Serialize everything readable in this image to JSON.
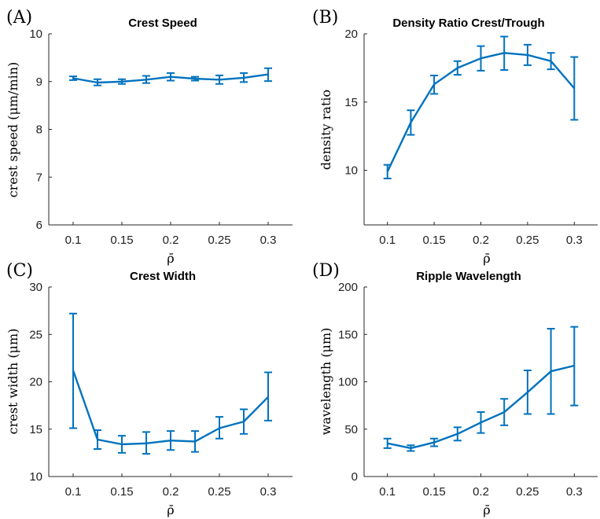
{
  "chart_data": [
    {
      "panel": "(A)",
      "type": "line",
      "title": "Crest Speed",
      "xlabel": "ρ̄",
      "ylabel": "crest speed (μm/min)",
      "x": [
        0.1,
        0.125,
        0.15,
        0.175,
        0.2,
        0.225,
        0.25,
        0.275,
        0.3
      ],
      "xticks": [
        0.1,
        0.15,
        0.2,
        0.25,
        0.3
      ],
      "xtick_labels": [
        "0.1",
        "0.15",
        "0.2",
        "0.25",
        "0.3"
      ],
      "xlim": [
        0.075,
        0.325
      ],
      "ylim": [
        6,
        10
      ],
      "yticks": [
        6,
        7,
        8,
        9,
        10
      ],
      "ytick_labels": [
        "6",
        "7",
        "8",
        "9",
        "10"
      ],
      "series": [
        {
          "values": [
            9.07,
            8.98,
            9.0,
            9.04,
            9.1,
            9.06,
            9.04,
            9.08,
            9.15
          ],
          "err_low": [
            9.03,
            8.92,
            8.95,
            8.97,
            9.02,
            9.02,
            8.95,
            8.99,
            9.01
          ],
          "err_high": [
            9.11,
            9.05,
            9.05,
            9.12,
            9.18,
            9.1,
            9.13,
            9.18,
            9.28
          ]
        }
      ]
    },
    {
      "panel": "(B)",
      "type": "line",
      "title": "Density Ratio Crest/Trough",
      "xlabel": "ρ̄",
      "ylabel": "density ratio",
      "x": [
        0.1,
        0.125,
        0.15,
        0.175,
        0.2,
        0.225,
        0.25,
        0.275,
        0.3
      ],
      "xticks": [
        0.1,
        0.15,
        0.2,
        0.25,
        0.3
      ],
      "xtick_labels": [
        "0.1",
        "0.15",
        "0.2",
        "0.25",
        "0.3"
      ],
      "xlim": [
        0.075,
        0.325
      ],
      "ylim": [
        6,
        20
      ],
      "yticks": [
        10,
        15,
        20
      ],
      "ytick_labels": [
        "10",
        "15",
        "20"
      ],
      "series": [
        {
          "values": [
            9.9,
            13.5,
            16.3,
            17.5,
            18.2,
            18.6,
            18.45,
            18.0,
            16.0
          ],
          "err_low": [
            9.4,
            12.6,
            15.6,
            17.0,
            17.3,
            17.35,
            17.7,
            17.4,
            13.7
          ],
          "err_high": [
            10.4,
            14.4,
            16.95,
            18.0,
            19.1,
            19.8,
            19.2,
            18.6,
            18.3
          ]
        }
      ]
    },
    {
      "panel": "(C)",
      "type": "line",
      "title": "Crest Width",
      "xlabel": "ρ̄",
      "ylabel": "crest width (μm)",
      "x": [
        0.1,
        0.125,
        0.15,
        0.175,
        0.2,
        0.225,
        0.25,
        0.275,
        0.3
      ],
      "xticks": [
        0.1,
        0.15,
        0.2,
        0.25,
        0.3
      ],
      "xtick_labels": [
        "0.1",
        "0.15",
        "0.2",
        "0.25",
        "0.3"
      ],
      "xlim": [
        0.075,
        0.325
      ],
      "ylim": [
        10,
        30
      ],
      "yticks": [
        10,
        15,
        20,
        25,
        30
      ],
      "ytick_labels": [
        "10",
        "15",
        "20",
        "25",
        "30"
      ],
      "series": [
        {
          "values": [
            21.2,
            13.9,
            13.4,
            13.5,
            13.8,
            13.7,
            15.1,
            15.8,
            18.4
          ],
          "err_low": [
            15.1,
            12.9,
            12.5,
            12.4,
            12.8,
            12.6,
            14.0,
            14.5,
            15.9
          ],
          "err_high": [
            27.2,
            14.9,
            14.3,
            14.7,
            14.8,
            14.8,
            16.3,
            17.1,
            21.0
          ]
        }
      ]
    },
    {
      "panel": "(D)",
      "type": "line",
      "title": "Ripple Wavelength",
      "xlabel": "ρ̄",
      "ylabel": "wavelength (μm)",
      "x": [
        0.1,
        0.125,
        0.15,
        0.175,
        0.2,
        0.225,
        0.25,
        0.275,
        0.3
      ],
      "xticks": [
        0.1,
        0.15,
        0.2,
        0.25,
        0.3
      ],
      "xtick_labels": [
        "0.1",
        "0.15",
        "0.2",
        "0.25",
        "0.3"
      ],
      "xlim": [
        0.075,
        0.325
      ],
      "ylim": [
        0,
        200
      ],
      "yticks": [
        0,
        50,
        100,
        150,
        200
      ],
      "ytick_labels": [
        "0",
        "50",
        "100",
        "150",
        "200"
      ],
      "series": [
        {
          "values": [
            35,
            30,
            36,
            45,
            57,
            68,
            89,
            111,
            117
          ],
          "err_low": [
            30,
            27,
            32,
            38,
            46,
            54,
            66,
            66,
            75
          ],
          "err_high": [
            40,
            33,
            40,
            52,
            68,
            82,
            112,
            156,
            158
          ]
        }
      ]
    }
  ]
}
